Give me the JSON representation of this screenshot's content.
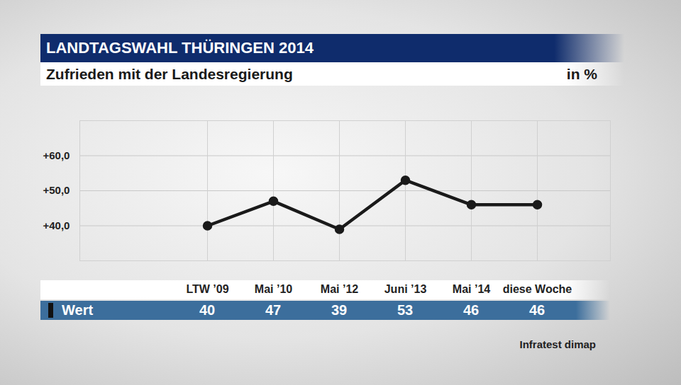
{
  "chart_data": {
    "type": "line",
    "title": "LANDTAGSWAHL THÜRINGEN 2014",
    "subtitle": "Zufrieden mit der Landesregierung",
    "unit_label": "in %",
    "source": "Infratest dimap",
    "categories": [
      "LTW ’09",
      "Mai ’10",
      "Mai ’12",
      "Juni ’13",
      "Mai ’14",
      "diese Woche"
    ],
    "series": [
      {
        "name": "Wert",
        "color": "#1a1a1a",
        "marker": "circle",
        "values": [
          40,
          47,
          39,
          53,
          46,
          46
        ]
      }
    ],
    "ylim": [
      30,
      70
    ],
    "yticks": [
      {
        "value": 40,
        "label": "+40,0"
      },
      {
        "value": 50,
        "label": "+50,0"
      },
      {
        "value": 60,
        "label": "+60,0"
      }
    ],
    "grid": true,
    "data_labels": true
  }
}
